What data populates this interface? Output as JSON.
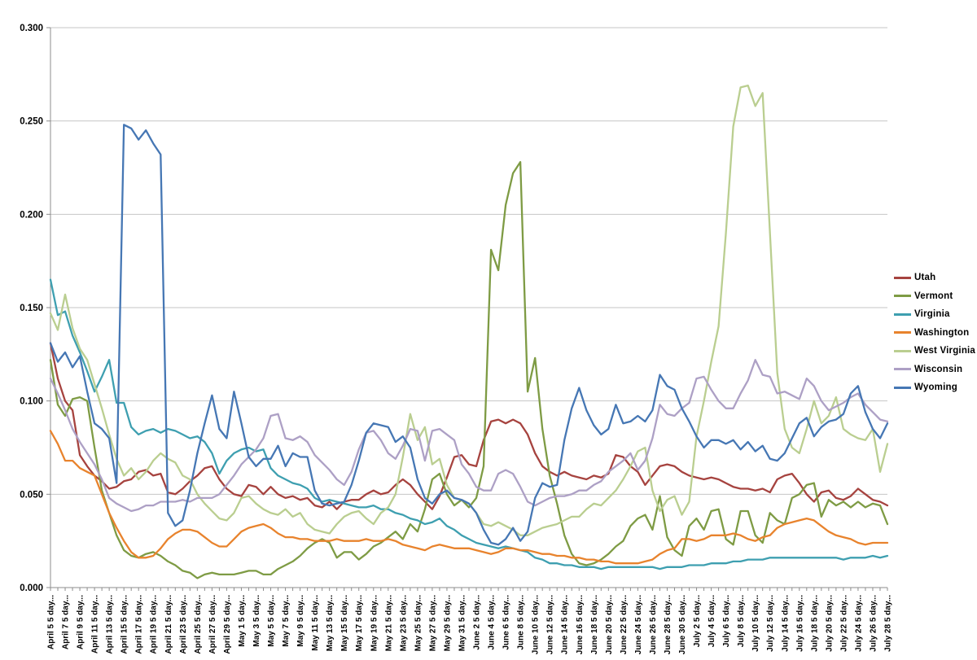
{
  "chart_data": {
    "type": "line",
    "title": "",
    "grid": "horizontal",
    "legend_position": "right",
    "x_axis": {
      "n_points": 115,
      "points_per_label": 2,
      "tick_labels": [
        "April 5 5 day...",
        "April 7 5 day...",
        "April 9 5 day...",
        "April 11 5 day...",
        "April 13 5 day...",
        "April 15 5 day...",
        "April 17 5 day...",
        "April 19 5 day...",
        "April 21 5 day...",
        "April 23 5 day...",
        "April 25 5 day...",
        "April 27 5 day...",
        "April 29 5 day...",
        "May 1 5 day...",
        "May 3 5 day...",
        "May 5 5 day...",
        "May 7 5 day...",
        "May 9 5 day...",
        "May 11 5 day...",
        "May 13 5 day...",
        "May 15 5 day...",
        "May 17 5 day...",
        "May 19 5 day...",
        "May 21 5 day...",
        "May 23 5 day...",
        "May 25 5 day...",
        "May 27 5 day...",
        "May 29 5 day...",
        "May 31 5 day...",
        "June 2 5 day...",
        "June 4 5 day...",
        "June 6 5 day...",
        "June 8 5 day...",
        "June 10 5 day...",
        "June 12 5 day...",
        "June 14 5 day...",
        "June 16 5 day...",
        "June 18 5 day...",
        "June 20 5 day...",
        "June 22 5 day...",
        "June 24 5 day...",
        "June 26 5 day...",
        "June 28 5 day...",
        "June 30 5 day...",
        "July 2 5 day...",
        "July 4 5 day...",
        "July 6 5 day...",
        "July 8 5 day...",
        "July 10 5 day...",
        "July 12 5 day...",
        "July 14 5 day...",
        "July 16 5 day...",
        "July 18 5 day...",
        "July 20 5 day...",
        "July 22 5 day...",
        "July 24 5 day...",
        "July 26 5 day...",
        "July 28 5 day..."
      ]
    },
    "y_axis": {
      "min": 0,
      "max": 0.3,
      "step": 0.05,
      "tick_labels": [
        "0.000",
        "0.050",
        "0.100",
        "0.150",
        "0.200",
        "0.250",
        "0.300"
      ]
    },
    "series": [
      {
        "name": "Utah",
        "color": "#A6433F",
        "values": [
          0.131,
          0.112,
          0.1,
          0.095,
          0.071,
          0.065,
          0.06,
          0.057,
          0.053,
          0.054,
          0.057,
          0.058,
          0.062,
          0.063,
          0.06,
          0.061,
          0.051,
          0.05,
          0.053,
          0.057,
          0.06,
          0.064,
          0.065,
          0.058,
          0.053,
          0.05,
          0.049,
          0.055,
          0.054,
          0.05,
          0.054,
          0.05,
          0.048,
          0.049,
          0.047,
          0.048,
          0.044,
          0.043,
          0.046,
          0.042,
          0.046,
          0.047,
          0.047,
          0.05,
          0.052,
          0.05,
          0.051,
          0.055,
          0.058,
          0.055,
          0.05,
          0.046,
          0.042,
          0.049,
          0.059,
          0.07,
          0.071,
          0.066,
          0.065,
          0.079,
          0.089,
          0.09,
          0.088,
          0.09,
          0.088,
          0.082,
          0.072,
          0.065,
          0.062,
          0.06,
          0.062,
          0.06,
          0.059,
          0.058,
          0.06,
          0.059,
          0.061,
          0.071,
          0.07,
          0.065,
          0.062,
          0.055,
          0.06,
          0.065,
          0.066,
          0.065,
          0.062,
          0.06,
          0.059,
          0.058,
          0.059,
          0.058,
          0.056,
          0.054,
          0.053,
          0.053,
          0.052,
          0.053,
          0.051,
          0.058,
          0.06,
          0.061,
          0.056,
          0.05,
          0.046,
          0.051,
          0.052,
          0.048,
          0.047,
          0.049,
          0.053,
          0.05,
          0.047,
          0.046,
          0.044
        ]
      },
      {
        "name": "Vermont",
        "color": "#7E9B44",
        "values": [
          0.122,
          0.098,
          0.092,
          0.101,
          0.102,
          0.1,
          0.075,
          0.052,
          0.04,
          0.028,
          0.02,
          0.017,
          0.016,
          0.018,
          0.019,
          0.017,
          0.014,
          0.012,
          0.009,
          0.008,
          0.005,
          0.007,
          0.008,
          0.007,
          0.007,
          0.007,
          0.008,
          0.009,
          0.009,
          0.007,
          0.007,
          0.01,
          0.012,
          0.014,
          0.017,
          0.021,
          0.024,
          0.026,
          0.024,
          0.016,
          0.019,
          0.019,
          0.015,
          0.018,
          0.022,
          0.024,
          0.027,
          0.03,
          0.026,
          0.034,
          0.03,
          0.042,
          0.058,
          0.061,
          0.05,
          0.044,
          0.047,
          0.043,
          0.048,
          0.065,
          0.181,
          0.17,
          0.205,
          0.222,
          0.228,
          0.105,
          0.123,
          0.085,
          0.06,
          0.045,
          0.028,
          0.018,
          0.013,
          0.012,
          0.013,
          0.015,
          0.018,
          0.022,
          0.025,
          0.033,
          0.037,
          0.039,
          0.031,
          0.049,
          0.027,
          0.02,
          0.017,
          0.033,
          0.037,
          0.031,
          0.041,
          0.042,
          0.026,
          0.023,
          0.041,
          0.041,
          0.028,
          0.024,
          0.04,
          0.036,
          0.034,
          0.048,
          0.05,
          0.055,
          0.056,
          0.038,
          0.047,
          0.044,
          0.046,
          0.043,
          0.046,
          0.043,
          0.045,
          0.044,
          0.034
        ]
      },
      {
        "name": "Virginia",
        "color": "#3E9FB0",
        "values": [
          0.165,
          0.146,
          0.148,
          0.135,
          0.126,
          0.116,
          0.105,
          0.113,
          0.122,
          0.099,
          0.099,
          0.086,
          0.082,
          0.084,
          0.085,
          0.083,
          0.085,
          0.084,
          0.082,
          0.08,
          0.081,
          0.078,
          0.072,
          0.061,
          0.068,
          0.072,
          0.074,
          0.075,
          0.073,
          0.074,
          0.064,
          0.06,
          0.058,
          0.056,
          0.055,
          0.053,
          0.048,
          0.046,
          0.047,
          0.046,
          0.045,
          0.044,
          0.043,
          0.043,
          0.044,
          0.042,
          0.042,
          0.04,
          0.039,
          0.037,
          0.036,
          0.034,
          0.035,
          0.037,
          0.033,
          0.031,
          0.028,
          0.026,
          0.024,
          0.023,
          0.022,
          0.021,
          0.022,
          0.021,
          0.02,
          0.019,
          0.016,
          0.015,
          0.013,
          0.013,
          0.012,
          0.012,
          0.011,
          0.011,
          0.011,
          0.01,
          0.011,
          0.011,
          0.011,
          0.011,
          0.011,
          0.011,
          0.011,
          0.01,
          0.011,
          0.011,
          0.011,
          0.012,
          0.012,
          0.012,
          0.013,
          0.013,
          0.013,
          0.014,
          0.014,
          0.015,
          0.015,
          0.015,
          0.016,
          0.016,
          0.016,
          0.016,
          0.016,
          0.016,
          0.016,
          0.016,
          0.016,
          0.016,
          0.015,
          0.016,
          0.016,
          0.016,
          0.017,
          0.016,
          0.017
        ]
      },
      {
        "name": "Washington",
        "color": "#E8832D",
        "values": [
          0.084,
          0.077,
          0.068,
          0.068,
          0.064,
          0.062,
          0.06,
          0.05,
          0.04,
          0.032,
          0.025,
          0.019,
          0.016,
          0.016,
          0.017,
          0.021,
          0.026,
          0.029,
          0.031,
          0.031,
          0.03,
          0.027,
          0.024,
          0.022,
          0.022,
          0.026,
          0.03,
          0.032,
          0.033,
          0.034,
          0.032,
          0.029,
          0.027,
          0.027,
          0.026,
          0.026,
          0.025,
          0.025,
          0.025,
          0.026,
          0.025,
          0.025,
          0.025,
          0.026,
          0.025,
          0.025,
          0.026,
          0.025,
          0.023,
          0.022,
          0.021,
          0.02,
          0.022,
          0.023,
          0.022,
          0.021,
          0.021,
          0.021,
          0.02,
          0.019,
          0.018,
          0.019,
          0.021,
          0.021,
          0.02,
          0.02,
          0.019,
          0.018,
          0.018,
          0.017,
          0.017,
          0.016,
          0.016,
          0.015,
          0.015,
          0.014,
          0.014,
          0.013,
          0.013,
          0.013,
          0.013,
          0.014,
          0.015,
          0.018,
          0.02,
          0.021,
          0.026,
          0.026,
          0.025,
          0.026,
          0.028,
          0.028,
          0.028,
          0.029,
          0.028,
          0.026,
          0.025,
          0.027,
          0.028,
          0.032,
          0.034,
          0.035,
          0.036,
          0.037,
          0.036,
          0.033,
          0.03,
          0.028,
          0.027,
          0.026,
          0.024,
          0.023,
          0.024,
          0.024,
          0.024
        ]
      },
      {
        "name": "West Virginia",
        "color": "#BACE90",
        "values": [
          0.147,
          0.138,
          0.157,
          0.139,
          0.128,
          0.122,
          0.109,
          0.096,
          0.082,
          0.069,
          0.06,
          0.064,
          0.058,
          0.062,
          0.068,
          0.072,
          0.069,
          0.067,
          0.06,
          0.058,
          0.05,
          0.045,
          0.041,
          0.037,
          0.036,
          0.04,
          0.048,
          0.049,
          0.045,
          0.042,
          0.04,
          0.039,
          0.042,
          0.038,
          0.04,
          0.034,
          0.031,
          0.03,
          0.029,
          0.034,
          0.038,
          0.04,
          0.041,
          0.037,
          0.034,
          0.04,
          0.043,
          0.05,
          0.07,
          0.093,
          0.079,
          0.086,
          0.066,
          0.069,
          0.055,
          0.048,
          0.047,
          0.045,
          0.04,
          0.034,
          0.033,
          0.035,
          0.033,
          0.031,
          0.028,
          0.028,
          0.03,
          0.032,
          0.033,
          0.034,
          0.036,
          0.038,
          0.038,
          0.042,
          0.045,
          0.044,
          0.048,
          0.052,
          0.058,
          0.065,
          0.073,
          0.075,
          0.052,
          0.041,
          0.047,
          0.049,
          0.039,
          0.046,
          0.081,
          0.1,
          0.121,
          0.14,
          0.19,
          0.247,
          0.268,
          0.269,
          0.258,
          0.265,
          0.19,
          0.115,
          0.085,
          0.075,
          0.072,
          0.085,
          0.1,
          0.088,
          0.092,
          0.102,
          0.085,
          0.082,
          0.08,
          0.079,
          0.085,
          0.062,
          0.077
        ]
      },
      {
        "name": "Wisconsin",
        "color": "#ADA0C5",
        "values": [
          0.112,
          0.104,
          0.095,
          0.085,
          0.078,
          0.072,
          0.066,
          0.058,
          0.048,
          0.045,
          0.043,
          0.041,
          0.042,
          0.044,
          0.044,
          0.046,
          0.046,
          0.046,
          0.047,
          0.046,
          0.048,
          0.048,
          0.048,
          0.05,
          0.055,
          0.06,
          0.066,
          0.07,
          0.074,
          0.08,
          0.092,
          0.093,
          0.08,
          0.079,
          0.081,
          0.078,
          0.071,
          0.067,
          0.063,
          0.058,
          0.055,
          0.062,
          0.074,
          0.083,
          0.084,
          0.079,
          0.072,
          0.069,
          0.076,
          0.085,
          0.084,
          0.068,
          0.084,
          0.085,
          0.082,
          0.079,
          0.066,
          0.061,
          0.054,
          0.052,
          0.052,
          0.061,
          0.063,
          0.061,
          0.054,
          0.046,
          0.044,
          0.046,
          0.048,
          0.049,
          0.049,
          0.05,
          0.052,
          0.052,
          0.055,
          0.057,
          0.062,
          0.065,
          0.068,
          0.072,
          0.063,
          0.068,
          0.08,
          0.098,
          0.093,
          0.092,
          0.096,
          0.099,
          0.112,
          0.113,
          0.106,
          0.1,
          0.096,
          0.096,
          0.104,
          0.111,
          0.122,
          0.114,
          0.113,
          0.104,
          0.105,
          0.103,
          0.101,
          0.112,
          0.108,
          0.1,
          0.095,
          0.097,
          0.099,
          0.102,
          0.104,
          0.098,
          0.094,
          0.09,
          0.089
        ]
      },
      {
        "name": "Wyoming",
        "color": "#4677B4",
        "values": [
          0.131,
          0.121,
          0.126,
          0.118,
          0.124,
          0.105,
          0.088,
          0.085,
          0.08,
          0.056,
          0.248,
          0.246,
          0.24,
          0.245,
          0.238,
          0.232,
          0.04,
          0.033,
          0.036,
          0.052,
          0.072,
          0.088,
          0.103,
          0.085,
          0.08,
          0.105,
          0.088,
          0.07,
          0.065,
          0.069,
          0.069,
          0.076,
          0.065,
          0.072,
          0.07,
          0.07,
          0.052,
          0.045,
          0.044,
          0.045,
          0.046,
          0.055,
          0.068,
          0.083,
          0.088,
          0.087,
          0.086,
          0.078,
          0.081,
          0.075,
          0.058,
          0.048,
          0.045,
          0.05,
          0.052,
          0.048,
          0.047,
          0.045,
          0.04,
          0.031,
          0.024,
          0.023,
          0.026,
          0.032,
          0.025,
          0.03,
          0.048,
          0.056,
          0.054,
          0.055,
          0.079,
          0.096,
          0.107,
          0.095,
          0.087,
          0.082,
          0.085,
          0.098,
          0.088,
          0.089,
          0.092,
          0.089,
          0.095,
          0.114,
          0.108,
          0.106,
          0.096,
          0.089,
          0.081,
          0.075,
          0.079,
          0.079,
          0.077,
          0.079,
          0.074,
          0.078,
          0.073,
          0.076,
          0.069,
          0.068,
          0.072,
          0.08,
          0.088,
          0.091,
          0.081,
          0.086,
          0.089,
          0.09,
          0.093,
          0.104,
          0.108,
          0.094,
          0.085,
          0.08,
          0.088
        ]
      }
    ]
  },
  "colors": {
    "background": "#FFFFFF",
    "gridline": "#C6C6C6",
    "axis": "#8C8C8C",
    "tick": "#8C8C8C",
    "label_text": "#000000"
  }
}
